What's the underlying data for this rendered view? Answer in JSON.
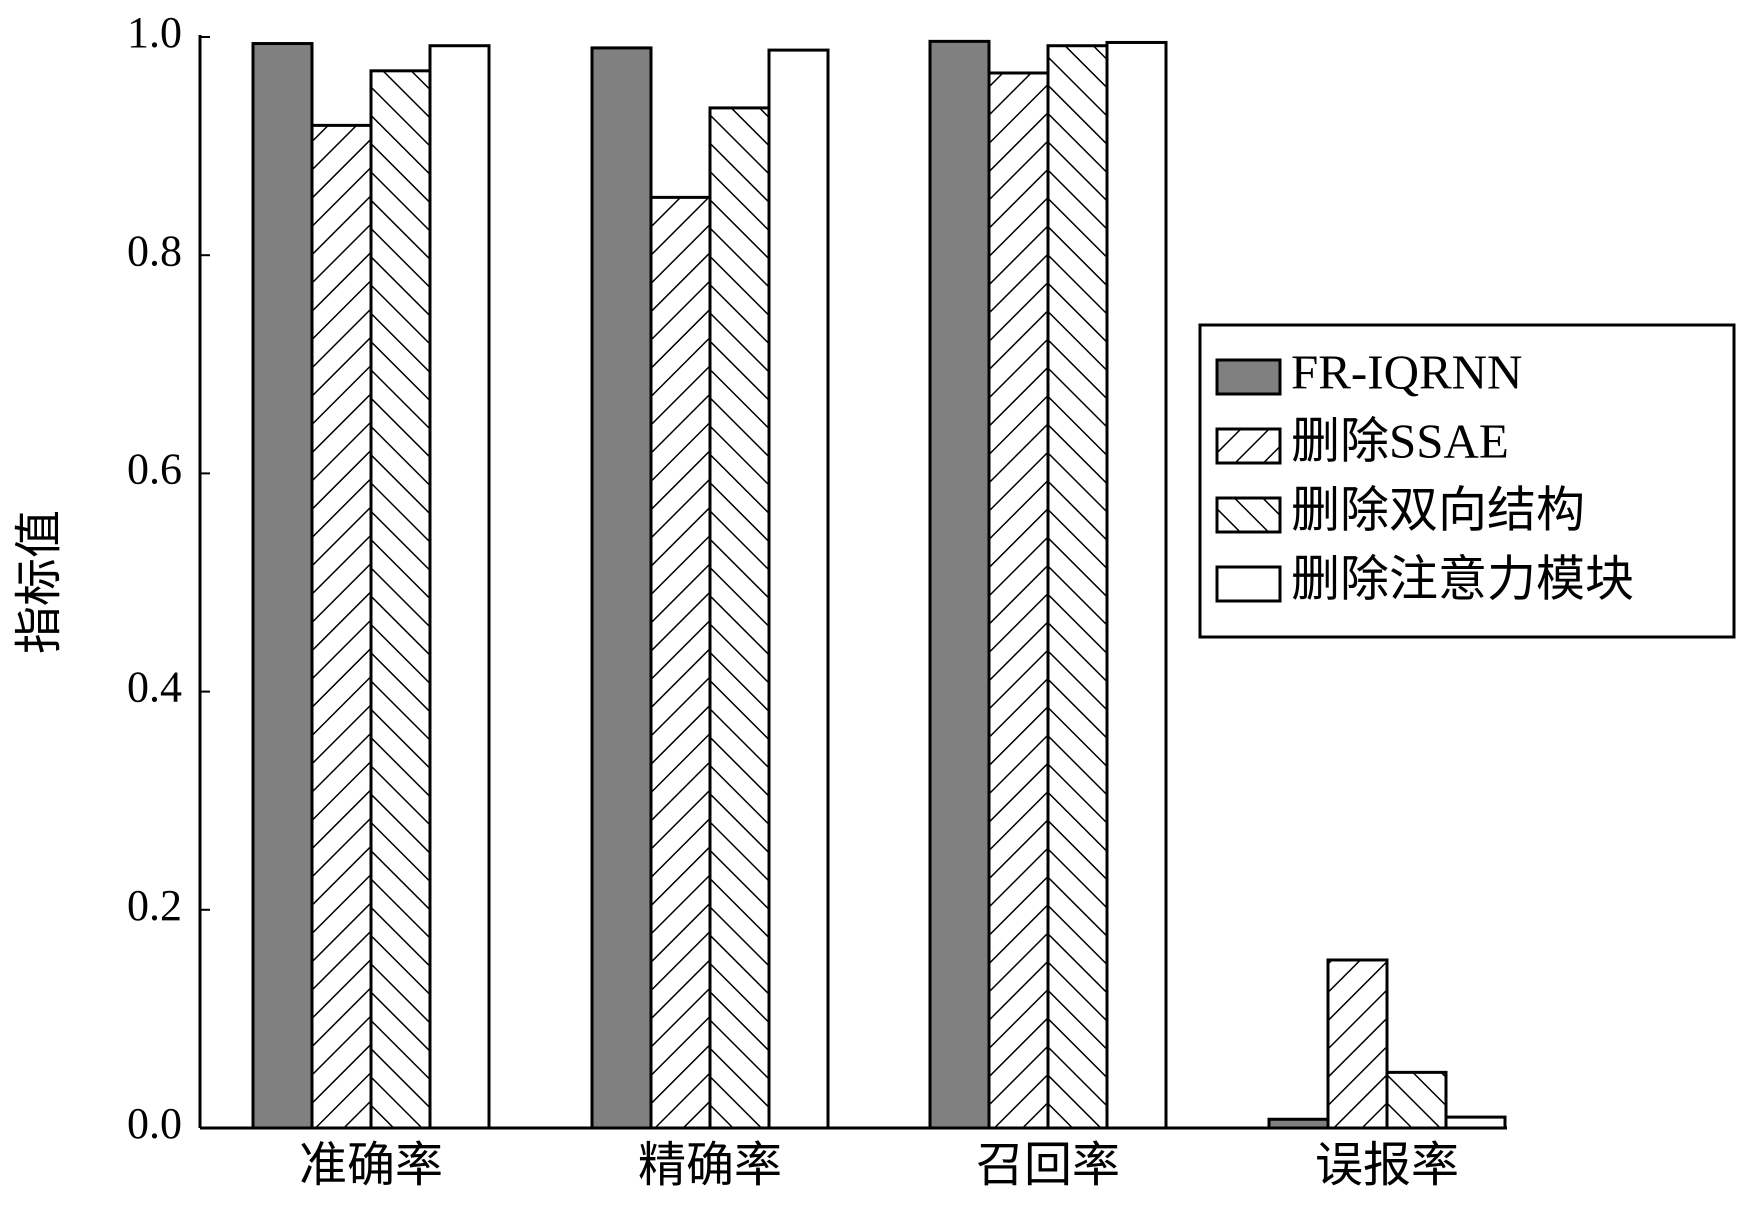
{
  "chart_data": {
    "type": "bar",
    "y_label": "指标值",
    "categories": [
      "准确率",
      "精确率",
      "召回率",
      "误报率"
    ],
    "series": [
      {
        "name": "FR-IQRNN",
        "color": "#808080",
        "hatch": "none",
        "values": [
          0.994,
          0.99,
          0.996,
          0.008
        ]
      },
      {
        "name": "删除SSAE",
        "color": "#ffffff",
        "hatch": "/",
        "values": [
          0.919,
          0.853,
          0.967,
          0.154
        ]
      },
      {
        "name": "删除双向结构",
        "color": "#ffffff",
        "hatch": "\\",
        "values": [
          0.969,
          0.935,
          0.992,
          0.051
        ]
      },
      {
        "name": "删除注意力模块",
        "color": "#ffffff",
        "hatch": "none",
        "values": [
          0.992,
          0.988,
          0.995,
          0.01
        ]
      }
    ],
    "ylim": [
      0,
      1.0
    ],
    "yticks": [
      {
        "value": 0,
        "label": "0.0"
      },
      {
        "value": 0.2,
        "label": "0.2"
      },
      {
        "value": 0.4,
        "label": "0.4"
      },
      {
        "value": 0.6,
        "label": "0.6"
      },
      {
        "value": 0.8,
        "label": "0.8"
      },
      {
        "value": 1.0,
        "label": "1.0"
      }
    ],
    "grid": false,
    "legend": "right"
  }
}
